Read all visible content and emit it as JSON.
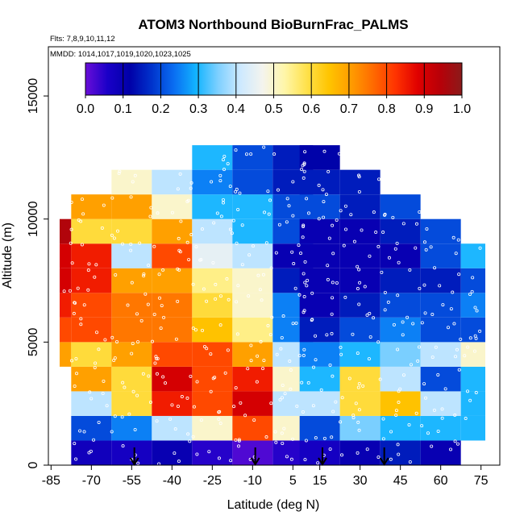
{
  "chart_data": {
    "type": "heatmap",
    "title": "ATOM3 Northbound BioBurnFrac_PALMS",
    "subtitle_flights": "Flts: 7,8,9,10,11,12",
    "subtitle_dates": "MMDD: 1014,1017,1019,1020,1023,1025",
    "xlabel": "Latitude (deg N)",
    "ylabel": "Altitude (m)",
    "xlim": [
      -86,
      82
    ],
    "ylim": [
      0,
      17000
    ],
    "xticks": [
      -85,
      -70,
      -55,
      -40,
      -25,
      -10,
      5,
      15,
      30,
      45,
      60,
      75
    ],
    "yticks": [
      0,
      5000,
      10000,
      15000
    ],
    "colorbar": {
      "min": 0.0,
      "max": 1.0,
      "ticks": [
        "0.0",
        "0.1",
        "0.2",
        "0.3",
        "0.4",
        "0.5",
        "0.6",
        "0.7",
        "0.8",
        "0.9",
        "1.0"
      ],
      "colors": [
        "#6a0ed8",
        "#1a00c8",
        "#0000a8",
        "#0033cc",
        "#0a6ef2",
        "#12b4ff",
        "#7fd0ff",
        "#cde9ff",
        "#f4f4ee",
        "#fff6a8",
        "#ffe14a",
        "#ffc400",
        "#ff9c00",
        "#ff6a00",
        "#ff3300",
        "#e00000",
        "#b80008",
        "#8b1a1a"
      ]
    },
    "latitude_bins": [
      -85,
      -70,
      -55,
      -40,
      -25,
      -10,
      5,
      15,
      30,
      45,
      60,
      75
    ],
    "altitude_bins_m": [
      0,
      1000,
      2000,
      3000,
      4000,
      5000,
      6000,
      7000,
      8000,
      9000,
      10000,
      11000,
      12000
    ],
    "values": [
      [
        null,
        0.08,
        0.07,
        0.1,
        0.05,
        0.02,
        0.05,
        0.07,
        0.1,
        0.15,
        0.1,
        null
      ],
      [
        null,
        0.2,
        0.25,
        0.4,
        0.5,
        0.8,
        0.5,
        0.2,
        0.35,
        0.3,
        0.3,
        0.3
      ],
      [
        null,
        0.4,
        0.6,
        0.85,
        0.8,
        0.9,
        0.4,
        0.4,
        0.6,
        0.65,
        0.4,
        0.3
      ],
      [
        null,
        0.7,
        0.6,
        0.9,
        0.8,
        0.85,
        0.5,
        0.3,
        0.6,
        0.4,
        0.2,
        0.3
      ],
      [
        0.7,
        0.6,
        0.7,
        0.8,
        0.8,
        0.7,
        0.4,
        0.25,
        0.3,
        0.35,
        0.4,
        0.5
      ],
      [
        0.8,
        0.8,
        0.75,
        0.75,
        0.65,
        0.55,
        0.25,
        0.15,
        0.2,
        0.25,
        0.2,
        0.2
      ],
      [
        0.85,
        0.8,
        0.75,
        0.75,
        0.6,
        0.5,
        0.25,
        0.1,
        0.15,
        0.2,
        0.2,
        0.25
      ],
      [
        0.9,
        0.85,
        0.7,
        0.7,
        0.55,
        0.5,
        0.15,
        0.1,
        0.1,
        0.15,
        0.15,
        0.2
      ],
      [
        0.9,
        0.85,
        0.4,
        0.8,
        0.45,
        0.4,
        0.1,
        0.1,
        0.1,
        0.1,
        0.2,
        0.3
      ],
      [
        0.95,
        0.6,
        0.6,
        0.7,
        0.4,
        0.3,
        0.2,
        0.1,
        0.1,
        0.15,
        0.2,
        null
      ],
      [
        null,
        0.7,
        0.7,
        0.5,
        0.3,
        0.3,
        0.2,
        0.2,
        0.15,
        0.2,
        null,
        null
      ],
      [
        null,
        null,
        0.5,
        0.4,
        0.25,
        0.2,
        0.15,
        0.15,
        0.15,
        null,
        null,
        null
      ],
      [
        null,
        null,
        null,
        null,
        0.3,
        0.2,
        0.15,
        0.12,
        null,
        null,
        null,
        null
      ]
    ],
    "arrow_latitudes": [
      -54,
      -9,
      16,
      39
    ],
    "grid": false,
    "legend": "top (horizontal colorbar)"
  }
}
